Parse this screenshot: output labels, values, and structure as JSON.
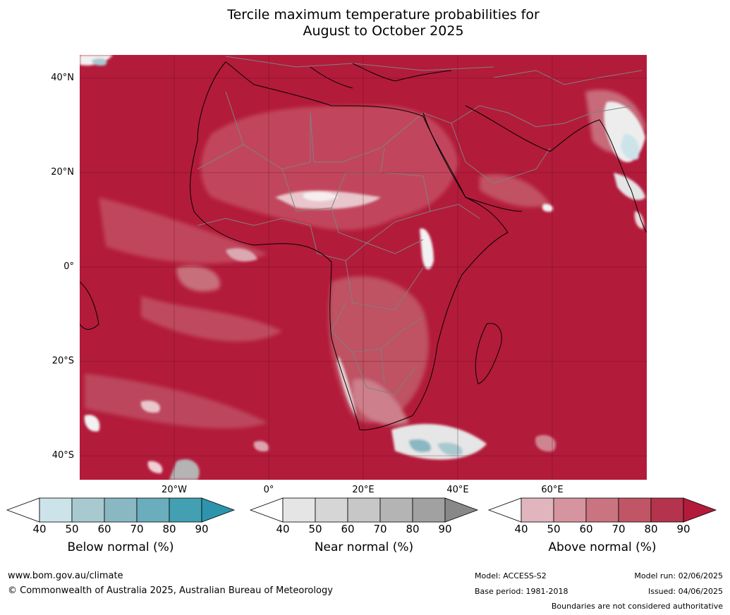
{
  "title": {
    "line1": "Tercile maximum temperature probabilities for",
    "line2": "August to October 2025"
  },
  "map": {
    "latitude_labels": [
      "40°N",
      "20°N",
      "0°",
      "20°S",
      "40°S"
    ],
    "longitude_labels": [
      "20°W",
      "0°",
      "20°E",
      "40°E",
      "60°E"
    ],
    "ocean_color": "#b31b3b",
    "land_border_color": "#777777",
    "coastline_color": "#000000"
  },
  "legends": [
    {
      "title": "Below normal (%)",
      "ticks": [
        "40",
        "50",
        "60",
        "70",
        "80",
        "90"
      ],
      "colors": [
        "#ffffff",
        "#cce3ea",
        "#a9c9d0",
        "#89b8c3",
        "#6aadbd",
        "#42a0b2",
        "#2e94ad"
      ]
    },
    {
      "title": "Near normal (%)",
      "ticks": [
        "40",
        "50",
        "60",
        "70",
        "80",
        "90"
      ],
      "colors": [
        "#ffffff",
        "#e5e5e5",
        "#d6d6d6",
        "#c7c7c7",
        "#b4b4b4",
        "#a1a1a1",
        "#888888"
      ]
    },
    {
      "title": "Above normal (%)",
      "ticks": [
        "40",
        "50",
        "60",
        "70",
        "80",
        "90"
      ],
      "colors": [
        "#ffffff",
        "#e0b5bd",
        "#d5949f",
        "#c97480",
        "#c05566",
        "#b5344d",
        "#b31b3b"
      ]
    }
  ],
  "footer": {
    "website": "www.bom.gov.au/climate",
    "copyright": "© Commonwealth of Australia 2025, Australian Bureau of Meteorology",
    "model": "Model: ACCESS-S2",
    "base_period": "Base period: 1981-2018",
    "model_run": "Model run: 02/06/2025",
    "issued": "Issued: 04/06/2025",
    "disclaimer": "Boundaries are not considered authoritative"
  }
}
